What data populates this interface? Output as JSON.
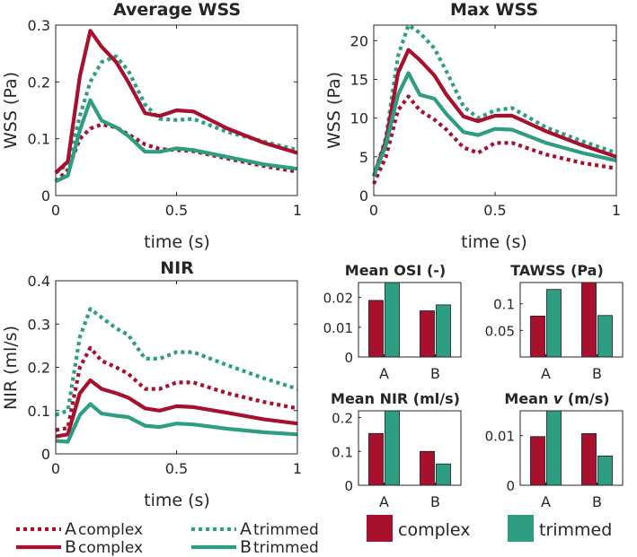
{
  "colors": {
    "complex": "#a8112e",
    "trimmed": "#2e9e83",
    "axis": "#262626"
  },
  "legend": {
    "a_complex": {
      "letter": "A",
      "label": "complex"
    },
    "a_trimmed": {
      "letter": "A",
      "label": "trimmed"
    },
    "b_complex": {
      "letter": "B",
      "label": "complex"
    },
    "b_trimmed": {
      "letter": "B",
      "label": "trimmed"
    },
    "swatch_complex": "complex",
    "swatch_trimmed": "trimmed"
  },
  "chart_data": [
    {
      "id": "avg_wss",
      "type": "line",
      "title": "Average WSS",
      "xlabel": "time (s)",
      "ylabel": "WSS (Pa)",
      "xlim": [
        0,
        1
      ],
      "ylim": [
        0,
        0.3
      ],
      "xticks": [
        0,
        0.5,
        1
      ],
      "xticklabels": [
        "0",
        "0.5",
        "1"
      ],
      "yticks": [
        0,
        0.1,
        0.2,
        0.3
      ],
      "yticklabels": [
        "0",
        "0.1",
        "0.2",
        "0.3"
      ],
      "x": [
        0,
        0.05,
        0.1,
        0.143,
        0.19,
        0.25,
        0.3,
        0.37,
        0.43,
        0.5,
        0.57,
        0.71,
        0.86,
        1
      ],
      "series": [
        {
          "name": "A complex",
          "group": "complex",
          "style": "dotted",
          "values": [
            0.025,
            0.045,
            0.1,
            0.118,
            0.125,
            0.12,
            0.108,
            0.09,
            0.082,
            0.08,
            0.078,
            0.065,
            0.052,
            0.042
          ]
        },
        {
          "name": "A trimmed",
          "group": "trimmed",
          "style": "dotted",
          "values": [
            0.04,
            0.055,
            0.14,
            0.2,
            0.235,
            0.245,
            0.22,
            0.16,
            0.135,
            0.133,
            0.135,
            0.112,
            0.095,
            0.08
          ]
        },
        {
          "name": "B complex",
          "group": "complex",
          "style": "solid",
          "values": [
            0.04,
            0.06,
            0.21,
            0.29,
            0.262,
            0.235,
            0.2,
            0.145,
            0.14,
            0.15,
            0.148,
            0.118,
            0.093,
            0.075
          ]
        },
        {
          "name": "B trimmed",
          "group": "trimmed",
          "style": "solid",
          "values": [
            0.025,
            0.035,
            0.115,
            0.168,
            0.132,
            0.12,
            0.105,
            0.077,
            0.077,
            0.083,
            0.08,
            0.068,
            0.055,
            0.047
          ]
        }
      ]
    },
    {
      "id": "max_wss",
      "type": "line",
      "title": "Max WSS",
      "xlabel": "time (s)",
      "ylabel": "WSS (Pa)",
      "xlim": [
        0,
        1
      ],
      "ylim": [
        0,
        22
      ],
      "xticks": [
        0,
        0.5,
        1
      ],
      "xticklabels": [
        "0",
        "0.5",
        "1"
      ],
      "yticks": [
        0,
        5,
        10,
        15,
        20
      ],
      "yticklabels": [
        "0",
        "5",
        "10",
        "15",
        "20"
      ],
      "x": [
        0,
        0.05,
        0.1,
        0.143,
        0.19,
        0.25,
        0.3,
        0.37,
        0.43,
        0.5,
        0.57,
        0.71,
        0.86,
        1
      ],
      "series": [
        {
          "name": "A complex",
          "group": "complex",
          "style": "dotted",
          "values": [
            1.5,
            5,
            11,
            12.8,
            11,
            9.8,
            8.5,
            6.2,
            5.5,
            6.8,
            6.8,
            5.3,
            4.2,
            3.5
          ]
        },
        {
          "name": "A trimmed",
          "group": "trimmed",
          "style": "dotted",
          "values": [
            2.5,
            7.5,
            18,
            22,
            21,
            19,
            16,
            11.5,
            10,
            11,
            11.3,
            8.8,
            7,
            5.5
          ]
        },
        {
          "name": "B complex",
          "group": "complex",
          "style": "solid",
          "values": [
            2.5,
            7,
            15.8,
            18.8,
            17.5,
            15.5,
            13,
            10.2,
            9.6,
            10.3,
            10.3,
            8.3,
            6.5,
            5
          ]
        },
        {
          "name": "B trimmed",
          "group": "trimmed",
          "style": "solid",
          "values": [
            2.5,
            6.5,
            13,
            15.8,
            13,
            12.5,
            10.5,
            8.2,
            7.8,
            8.6,
            8.5,
            6.8,
            5.5,
            4.5
          ]
        }
      ]
    },
    {
      "id": "nir",
      "type": "line",
      "title": "NIR",
      "xlabel": "time (s)",
      "ylabel": "NIR (ml/s)",
      "xlim": [
        0,
        1
      ],
      "ylim": [
        0,
        0.4
      ],
      "xticks": [
        0,
        0.5,
        1
      ],
      "xticklabels": [
        "0",
        "0.5",
        "1"
      ],
      "yticks": [
        0,
        0.1,
        0.2,
        0.3,
        0.4
      ],
      "yticklabels": [
        "0",
        "0.1",
        "0.2",
        "0.3",
        "0.4"
      ],
      "x": [
        0,
        0.05,
        0.1,
        0.143,
        0.19,
        0.25,
        0.3,
        0.37,
        0.43,
        0.5,
        0.57,
        0.71,
        0.86,
        1
      ],
      "series": [
        {
          "name": "A complex",
          "group": "complex",
          "style": "dotted",
          "values": [
            0.055,
            0.06,
            0.2,
            0.245,
            0.215,
            0.2,
            0.185,
            0.15,
            0.15,
            0.165,
            0.165,
            0.14,
            0.12,
            0.105
          ]
        },
        {
          "name": "A trimmed",
          "group": "trimmed",
          "style": "dotted",
          "values": [
            0.09,
            0.1,
            0.27,
            0.335,
            0.315,
            0.29,
            0.275,
            0.22,
            0.22,
            0.235,
            0.235,
            0.205,
            0.175,
            0.15
          ]
        },
        {
          "name": "B complex",
          "group": "complex",
          "style": "solid",
          "values": [
            0.04,
            0.045,
            0.14,
            0.17,
            0.15,
            0.14,
            0.13,
            0.105,
            0.1,
            0.11,
            0.108,
            0.095,
            0.08,
            0.07
          ]
        },
        {
          "name": "B trimmed",
          "group": "trimmed",
          "style": "solid",
          "values": [
            0.03,
            0.028,
            0.09,
            0.115,
            0.093,
            0.088,
            0.085,
            0.065,
            0.062,
            0.07,
            0.068,
            0.058,
            0.05,
            0.045
          ]
        }
      ]
    },
    {
      "id": "mean_osi",
      "type": "bar",
      "title": "Mean OSI (-)",
      "categories": [
        "A",
        "B"
      ],
      "ylim": [
        0,
        0.025
      ],
      "yticks": [
        0,
        0.01,
        0.02
      ],
      "yticklabels": [
        "0",
        "0.01",
        "0.02"
      ],
      "series": [
        {
          "name": "complex",
          "values": [
            0.019,
            0.0155
          ]
        },
        {
          "name": "trimmed",
          "values": [
            0.025,
            0.0175
          ]
        }
      ]
    },
    {
      "id": "tawss",
      "type": "bar",
      "title": "TAWSS (Pa)",
      "categories": [
        "A",
        "B"
      ],
      "ylim": [
        0,
        0.14
      ],
      "yticks": [
        0.05,
        0.1
      ],
      "yticklabels": [
        "0.05",
        "0.1"
      ],
      "series": [
        {
          "name": "complex",
          "values": [
            0.077,
            0.14
          ]
        },
        {
          "name": "trimmed",
          "values": [
            0.127,
            0.078
          ]
        }
      ]
    },
    {
      "id": "mean_nir",
      "type": "bar",
      "title": "Mean NIR (ml/s)",
      "categories": [
        "A",
        "B"
      ],
      "ylim": [
        0,
        0.22
      ],
      "yticks": [
        0,
        0.1,
        0.2
      ],
      "yticklabels": [
        "0",
        "0.1",
        "0.2"
      ],
      "series": [
        {
          "name": "complex",
          "values": [
            0.153,
            0.1
          ]
        },
        {
          "name": "trimmed",
          "values": [
            0.22,
            0.063
          ]
        }
      ]
    },
    {
      "id": "mean_v",
      "type": "bar",
      "title": "Mean ",
      "title_italic": "v",
      "title_suffix": " (m/s)",
      "categories": [
        "A",
        "B"
      ],
      "ylim": [
        0,
        0.015
      ],
      "yticks": [
        0,
        0.01
      ],
      "yticklabels": [
        "0",
        "0.01"
      ],
      "series": [
        {
          "name": "complex",
          "values": [
            0.0098,
            0.0104
          ]
        },
        {
          "name": "trimmed",
          "values": [
            0.015,
            0.0059
          ]
        }
      ]
    }
  ]
}
